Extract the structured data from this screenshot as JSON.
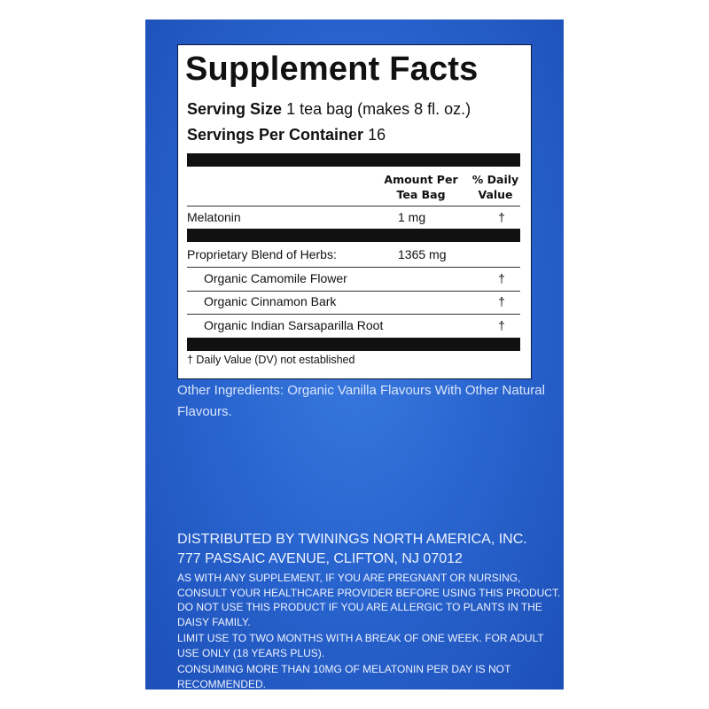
{
  "panel": {
    "title": "Supplement Facts",
    "serving_size_label": "Serving Size",
    "serving_size_value": "1 tea bag (makes 8 fl. oz.)",
    "servings_label": "Servings Per Container",
    "servings_value": "16",
    "header_amount_1": "Amount Per",
    "header_amount_2": "Tea Bag",
    "header_dv_1": "% Daily",
    "header_dv_2": "Value",
    "rows": [
      {
        "label": "Melatonin",
        "amount": "1 mg",
        "dv": "†"
      },
      {
        "label": "Proprietary Blend of Herbs:",
        "amount": "1365 mg",
        "dv": ""
      },
      {
        "label": "Organic Camomile Flower",
        "amount": "",
        "dv": "†"
      },
      {
        "label": "Organic Cinnamon Bark",
        "amount": "",
        "dv": "†"
      },
      {
        "label": "Organic Indian Sarsaparilla Root",
        "amount": "",
        "dv": "†"
      }
    ],
    "footnote": "† Daily Value (DV) not established"
  },
  "other_ingredients": "Other Ingredients: Organic Vanilla Flavours With Other Natural Flavours.",
  "distributor": {
    "line1": "DISTRIBUTED BY TWININGS NORTH AMERICA, INC.",
    "line2": "777 PASSAIC AVENUE, CLIFTON, NJ 07012"
  },
  "warnings": [
    "AS WITH ANY SUPPLEMENT, IF YOU ARE PREGNANT OR NURSING, CONSULT YOUR HEALTHCARE PROVIDER BEFORE USING THIS PRODUCT. DO NOT USE THIS PRODUCT IF YOU ARE ALLERGIC TO PLANTS IN THE DAISY FAMILY.",
    "LIMIT USE TO TWO MONTHS WITH A BREAK OF ONE WEEK. FOR ADULT USE ONLY (18 YEARS PLUS).",
    "CONSUMING MORE THAN 10MG OF MELATONIN PER DAY IS NOT RECOMMENDED."
  ],
  "colors": {
    "package_blue": "#2a66d0",
    "panel_bg": "#ffffff",
    "text_dark": "#111111"
  }
}
